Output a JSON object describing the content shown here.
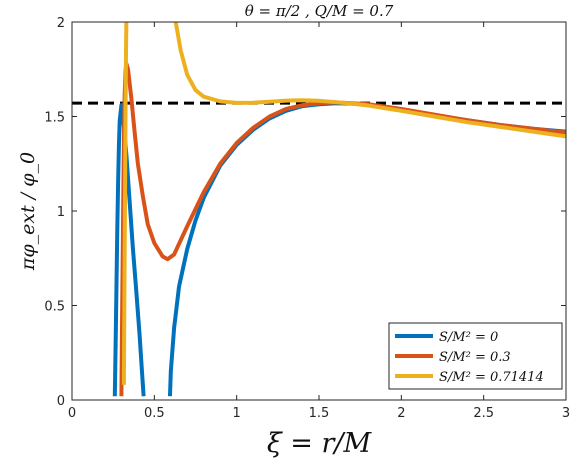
{
  "chart_data": {
    "type": "line",
    "title": "θ = π/2 ,    Q/M = 0.7",
    "xlabel": "ξ = r/M",
    "ylabel": "πφ_ext / φ_0",
    "xlim": [
      0,
      3
    ],
    "ylim": [
      0,
      2
    ],
    "xticks": [
      "0",
      "0.5",
      "1",
      "1.5",
      "2",
      "2.5",
      "3"
    ],
    "yticks": [
      "0",
      "0.5",
      "1",
      "1.5",
      "2"
    ],
    "grid": false,
    "legend_position": "bottom-right",
    "reference_line": {
      "y": 1.5708,
      "style": "dashed",
      "color": "#000000"
    },
    "series": [
      {
        "name": "S/M² = 0",
        "color": "#0072BD",
        "segments": [
          [
            [
              0.26,
              0.02
            ],
            [
              0.265,
              0.3
            ],
            [
              0.27,
              0.6
            ],
            [
              0.275,
              0.9
            ],
            [
              0.28,
              1.15
            ],
            [
              0.285,
              1.35
            ],
            [
              0.29,
              1.48
            ],
            [
              0.3,
              1.56
            ],
            [
              0.31,
              1.5
            ],
            [
              0.33,
              1.3
            ],
            [
              0.35,
              1.05
            ],
            [
              0.37,
              0.8
            ],
            [
              0.39,
              0.58
            ],
            [
              0.41,
              0.35
            ],
            [
              0.425,
              0.15
            ],
            [
              0.435,
              0.02
            ]
          ],
          [
            [
              0.595,
              0.02
            ],
            [
              0.6,
              0.15
            ],
            [
              0.62,
              0.38
            ],
            [
              0.65,
              0.6
            ],
            [
              0.7,
              0.8
            ],
            [
              0.75,
              0.95
            ],
            [
              0.8,
              1.07
            ],
            [
              0.9,
              1.24
            ],
            [
              1.0,
              1.35
            ],
            [
              1.1,
              1.43
            ],
            [
              1.2,
              1.49
            ],
            [
              1.3,
              1.53
            ],
            [
              1.4,
              1.555
            ],
            [
              1.5,
              1.565
            ],
            [
              1.6,
              1.57
            ],
            [
              1.7,
              1.568
            ],
            [
              1.8,
              1.56
            ],
            [
              2.0,
              1.535
            ],
            [
              2.2,
              1.505
            ],
            [
              2.4,
              1.48
            ],
            [
              2.6,
              1.455
            ],
            [
              2.8,
              1.435
            ],
            [
              3.0,
              1.42
            ]
          ]
        ]
      },
      {
        "name": "S/M² = 0.3",
        "color": "#D95319",
        "segments": [
          [
            [
              0.3,
              0.02
            ],
            [
              0.305,
              0.5
            ],
            [
              0.31,
              0.95
            ],
            [
              0.315,
              1.35
            ],
            [
              0.32,
              1.62
            ],
            [
              0.325,
              1.74
            ],
            [
              0.33,
              1.78
            ],
            [
              0.34,
              1.75
            ],
            [
              0.36,
              1.6
            ],
            [
              0.38,
              1.42
            ],
            [
              0.4,
              1.25
            ],
            [
              0.43,
              1.08
            ],
            [
              0.46,
              0.93
            ],
            [
              0.5,
              0.83
            ],
            [
              0.55,
              0.76
            ],
            [
              0.58,
              0.745
            ],
            [
              0.62,
              0.77
            ],
            [
              0.7,
              0.92
            ],
            [
              0.8,
              1.1
            ],
            [
              0.9,
              1.25
            ],
            [
              1.0,
              1.36
            ],
            [
              1.1,
              1.44
            ],
            [
              1.2,
              1.5
            ],
            [
              1.3,
              1.54
            ],
            [
              1.4,
              1.56
            ],
            [
              1.5,
              1.57
            ],
            [
              1.6,
              1.575
            ],
            [
              1.7,
              1.57
            ],
            [
              1.8,
              1.565
            ],
            [
              2.0,
              1.54
            ],
            [
              2.2,
              1.51
            ],
            [
              2.4,
              1.48
            ],
            [
              2.6,
              1.455
            ],
            [
              2.8,
              1.435
            ],
            [
              3.0,
              1.415
            ]
          ]
        ]
      },
      {
        "name": "S/M² = 0.71414",
        "color": "#EDB120",
        "segments": [
          [
            [
              0.315,
              0.08
            ],
            [
              0.32,
              0.8
            ],
            [
              0.325,
              1.5
            ],
            [
              0.328,
              1.85
            ],
            [
              0.33,
              2.0
            ]
          ],
          [
            [
              0.63,
              2.0
            ],
            [
              0.66,
              1.85
            ],
            [
              0.7,
              1.72
            ],
            [
              0.75,
              1.64
            ],
            [
              0.8,
              1.605
            ],
            [
              0.9,
              1.58
            ],
            [
              1.0,
              1.572
            ],
            [
              1.1,
              1.573
            ],
            [
              1.2,
              1.578
            ],
            [
              1.3,
              1.584
            ],
            [
              1.4,
              1.586
            ],
            [
              1.5,
              1.583
            ],
            [
              1.6,
              1.576
            ],
            [
              1.7,
              1.568
            ],
            [
              1.8,
              1.558
            ],
            [
              2.0,
              1.53
            ],
            [
              2.2,
              1.5
            ],
            [
              2.4,
              1.47
            ],
            [
              2.6,
              1.445
            ],
            [
              2.8,
              1.42
            ],
            [
              3.0,
              1.395
            ]
          ]
        ]
      }
    ]
  }
}
